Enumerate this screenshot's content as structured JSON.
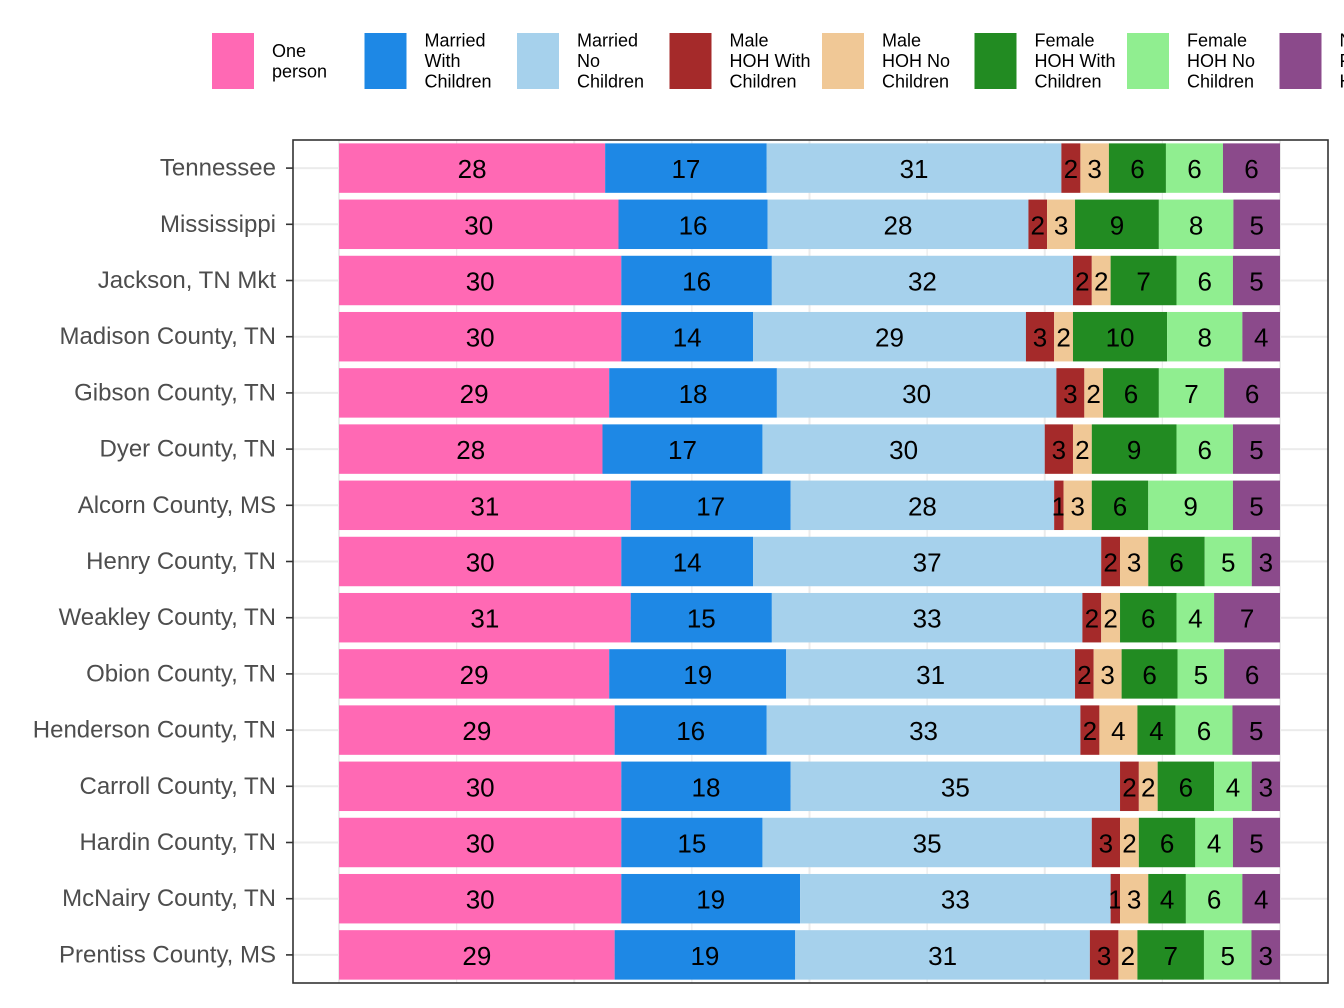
{
  "chart_data": {
    "type": "bar",
    "orientation": "horizontal",
    "stacked": true,
    "normalized": true,
    "categories": [
      "Tennessee",
      "Mississippi",
      "Jackson, TN Mkt",
      "Madison County, TN",
      "Gibson County, TN",
      "Dyer County, TN",
      "Alcorn County, MS",
      "Henry County, TN",
      "Weakley County, TN",
      "Obion County, TN",
      "Henderson County, TN",
      "Carroll County, TN",
      "Hardin County, TN",
      "McNairy County, TN",
      "Prentiss County, MS"
    ],
    "series": [
      {
        "name": "One person",
        "legend_lines": [
          "One",
          "person"
        ],
        "color": "#FF69B4",
        "values": [
          28,
          30,
          30,
          30,
          29,
          28,
          31,
          30,
          31,
          29,
          29,
          30,
          30,
          30,
          29
        ]
      },
      {
        "name": "Married With Children",
        "legend_lines": [
          "Married",
          "With",
          "Children"
        ],
        "color": "#1E88E5",
        "values": [
          17,
          16,
          16,
          14,
          18,
          17,
          17,
          14,
          15,
          19,
          16,
          18,
          15,
          19,
          19
        ]
      },
      {
        "name": "Married No Children",
        "legend_lines": [
          "Married",
          "No",
          "Children"
        ],
        "color": "#A6D1EC",
        "values": [
          31,
          28,
          32,
          29,
          30,
          30,
          28,
          37,
          33,
          31,
          33,
          35,
          35,
          33,
          31
        ]
      },
      {
        "name": "Male HOH With Children",
        "legend_lines": [
          "Male",
          "HOH With",
          "Children"
        ],
        "color": "#A52A2A",
        "values": [
          2,
          2,
          2,
          3,
          3,
          3,
          1,
          2,
          2,
          2,
          2,
          2,
          3,
          1,
          3
        ]
      },
      {
        "name": "Male HOH No Children",
        "legend_lines": [
          "Male",
          "HOH No",
          "Children"
        ],
        "color": "#F0C896",
        "values": [
          3,
          3,
          2,
          2,
          2,
          2,
          3,
          3,
          2,
          3,
          4,
          2,
          2,
          3,
          2
        ]
      },
      {
        "name": "Female HOH With Children",
        "legend_lines": [
          "Female",
          "HOH With",
          "Children"
        ],
        "color": "#228B22",
        "values": [
          6,
          9,
          7,
          10,
          6,
          9,
          6,
          6,
          6,
          6,
          4,
          6,
          6,
          4,
          7
        ]
      },
      {
        "name": "Female HOH No Children",
        "legend_lines": [
          "Female",
          "HOH No",
          "Children"
        ],
        "color": "#90EE90",
        "values": [
          6,
          8,
          6,
          8,
          7,
          6,
          9,
          5,
          4,
          5,
          6,
          4,
          4,
          6,
          5
        ]
      },
      {
        "name": "Non Family Household",
        "legend_lines": [
          "No",
          "Fa",
          "Ho"
        ],
        "color": "#8B4A8B",
        "values": [
          6,
          5,
          5,
          4,
          6,
          5,
          5,
          3,
          7,
          6,
          5,
          3,
          5,
          4,
          3
        ]
      }
    ],
    "xlim": [
      0,
      1
    ],
    "grid": true,
    "legend_position": "top"
  }
}
